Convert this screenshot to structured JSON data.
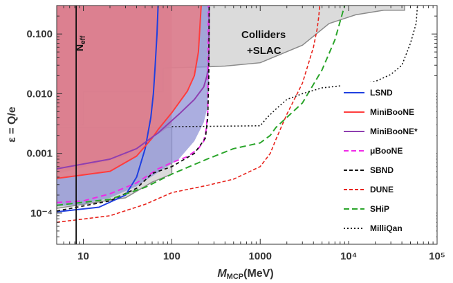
{
  "chart_data": {
    "type": "line",
    "x_scale": "log",
    "y_scale": "log",
    "xlim": [
      5,
      100000
    ],
    "ylim": [
      3e-05,
      0.3
    ],
    "x_ticks": [
      {
        "value": 10,
        "label": "10"
      },
      {
        "value": 100,
        "label": "100"
      },
      {
        "value": 1000,
        "label": "1000"
      },
      {
        "value": 10000,
        "label": "10⁴"
      },
      {
        "value": 100000,
        "label": "10⁵"
      }
    ],
    "y_ticks": [
      {
        "value": 0.0001,
        "label": "10⁻⁴"
      },
      {
        "value": 0.001,
        "label": "0.001"
      },
      {
        "value": 0.01,
        "label": "0.010"
      },
      {
        "value": 0.1,
        "label": "0.100"
      }
    ],
    "xlabel": {
      "symbol": "M",
      "subscript": "MCP",
      "unit": "(MeV)"
    },
    "ylabel": "ε = Q/e",
    "grid": false,
    "legend_position": "right",
    "annotations": [
      {
        "text": "Colliders",
        "x": 550,
        "y": 0.11
      },
      {
        "text": "+SLAC",
        "x": 640,
        "y": 0.057
      }
    ],
    "neff_label": {
      "base": "N",
      "subscript": "eff",
      "x": 8.3,
      "y": 0.15
    },
    "excluded_regions": [
      {
        "name": "Colliders+SLAC",
        "fill": "#cfcfcf",
        "stroke": "#8a8a8a",
        "points": [
          [
            5,
            0.003
          ],
          [
            10,
            0.003
          ],
          [
            10,
            0.0108
          ],
          [
            80,
            0.0108
          ],
          [
            80,
            0.027
          ],
          [
            230,
            0.028
          ],
          [
            400,
            0.029
          ],
          [
            1000,
            0.033
          ],
          [
            3000,
            0.065
          ],
          [
            6000,
            0.15
          ],
          [
            12000,
            0.21
          ],
          [
            25000,
            0.25
          ],
          [
            43000,
            0.25
          ],
          [
            43000,
            0.3
          ],
          [
            5,
            0.3
          ]
        ]
      },
      {
        "name": "SLAC",
        "fill": "#cfcfcf",
        "stroke": "#8a8a8a",
        "points": [
          [
            5,
            0.00012
          ],
          [
            30,
            0.00018
          ],
          [
            60,
            0.00033
          ],
          [
            100,
            0.00045
          ],
          [
            100,
            0.0027
          ],
          [
            5,
            0.0027
          ]
        ]
      },
      {
        "name": "Neff",
        "fill": "#c7687f",
        "stroke": "none",
        "points": [
          [
            5,
            0.00045
          ],
          [
            30,
            0.0009
          ],
          [
            60,
            0.0018
          ],
          [
            100,
            0.003
          ],
          [
            100,
            0.3
          ],
          [
            5,
            0.3
          ]
        ]
      },
      {
        "name": "MiniBooNE*",
        "fill": "#8f93d6",
        "stroke": "none",
        "points": [
          [
            5,
            0.00013
          ],
          [
            10,
            0.00014
          ],
          [
            20,
            0.00018
          ],
          [
            40,
            0.00028
          ],
          [
            70,
            0.00048
          ],
          [
            120,
            0.0008
          ],
          [
            180,
            0.0016
          ],
          [
            230,
            0.0033
          ],
          [
            250,
            0.0055
          ],
          [
            262,
            0.013
          ],
          [
            265,
            0.3
          ],
          [
            5,
            0.3
          ]
        ]
      },
      {
        "name": "MiniBooNE",
        "fill": "#f07b7e",
        "stroke": "none",
        "points": [
          [
            5,
            0.00038
          ],
          [
            20,
            0.0005
          ],
          [
            40,
            0.0009
          ],
          [
            60,
            0.0018
          ],
          [
            70,
            0.0025
          ],
          [
            100,
            0.0048
          ],
          [
            150,
            0.011
          ],
          [
            180,
            0.02
          ],
          [
            200,
            0.05
          ],
          [
            215,
            0.3
          ],
          [
            5,
            0.3
          ]
        ]
      }
    ],
    "series": [
      {
        "name": "LSND",
        "color": "#1f3fe0",
        "dash": "",
        "width": 2,
        "x": [
          5,
          15,
          30,
          40,
          50,
          58,
          62,
          65,
          68,
          70
        ],
        "y": [
          0.000105,
          0.000125,
          0.0002,
          0.0004,
          0.0012,
          0.004,
          0.01,
          0.03,
          0.1,
          0.3
        ]
      },
      {
        "name": "MiniBooNE",
        "color": "#ff3c3c",
        "dash": "",
        "width": 2,
        "x": [
          5,
          20,
          40,
          60,
          70,
          100,
          150,
          180,
          200,
          215
        ],
        "y": [
          0.00038,
          0.0005,
          0.0009,
          0.0018,
          0.0025,
          0.0048,
          0.011,
          0.02,
          0.05,
          0.3
        ]
      },
      {
        "name": "MiniBooNE*",
        "color": "#8e3fb0",
        "dash": "",
        "width": 2,
        "x": [
          5,
          20,
          40,
          70,
          120,
          180,
          230,
          250,
          262,
          265
        ],
        "y": [
          0.00055,
          0.0008,
          0.0012,
          0.0022,
          0.0045,
          0.008,
          0.013,
          0.02,
          0.035,
          0.3
        ]
      },
      {
        "name": "μBooNE",
        "color": "#f029e8",
        "dash": "8,5",
        "width": 2,
        "x": [
          5,
          10,
          20,
          40,
          70,
          100,
          150,
          200,
          230,
          245,
          255,
          260
        ],
        "y": [
          0.00015,
          0.00016,
          0.00021,
          0.00032,
          0.00055,
          0.0007,
          0.00088,
          0.0012,
          0.0016,
          0.0025,
          0.005,
          0.3
        ]
      },
      {
        "name": "SBND",
        "color": "#111111",
        "dash": "5,4",
        "width": 1.8,
        "x": [
          5,
          20,
          40,
          60,
          100,
          180,
          240,
          255,
          262,
          265
        ],
        "y": [
          0.000108,
          0.00016,
          0.00026,
          0.00046,
          0.0006,
          0.001,
          0.0018,
          0.004,
          0.02,
          0.3
        ]
      },
      {
        "name": "DUNE",
        "color": "#e8231c",
        "dash": "5,3",
        "width": 1.6,
        "x": [
          5,
          20,
          50,
          100,
          250,
          500,
          1000,
          1300,
          1500,
          2000,
          3000,
          4000,
          4400,
          4600,
          4700
        ],
        "y": [
          7e-05,
          9e-05,
          0.00014,
          0.00022,
          0.00029,
          0.00037,
          0.0006,
          0.001,
          0.0017,
          0.0045,
          0.015,
          0.06,
          0.12,
          0.2,
          0.3
        ]
      },
      {
        "name": "SHiP",
        "color": "#2aa52a",
        "dash": "9,5",
        "width": 2,
        "x": [
          5,
          20,
          50,
          100,
          250,
          500,
          1000,
          1300,
          1500,
          2000,
          3000,
          5000,
          7000,
          9000
        ],
        "y": [
          0.000135,
          0.00017,
          0.00027,
          0.00045,
          0.0008,
          0.0012,
          0.0015,
          0.002,
          0.0027,
          0.004,
          0.007,
          0.025,
          0.08,
          0.3
        ]
      },
      {
        "name": "MilliQan",
        "color": "#111111",
        "dash": "2,3",
        "width": 1.6,
        "x": [
          100,
          1000,
          1200,
          1500,
          2000,
          3000,
          5000,
          10000,
          20000,
          30000,
          40000,
          50000,
          58000,
          60000
        ],
        "y": [
          0.0028,
          0.0029,
          0.004,
          0.0055,
          0.008,
          0.01,
          0.0125,
          0.014,
          0.016,
          0.021,
          0.03,
          0.07,
          0.15,
          0.3
        ]
      },
      {
        "name": "Neff",
        "color": "#111111",
        "dash": "",
        "width": 1.8,
        "x": [
          8.3,
          8.3
        ],
        "y": [
          3e-05,
          0.3
        ]
      }
    ],
    "legend": [
      {
        "label": "LSND",
        "color": "#1f3fe0",
        "dash": ""
      },
      {
        "label": "MiniBooNE",
        "color": "#ff3c3c",
        "dash": ""
      },
      {
        "label": "MiniBooNE*",
        "color": "#8e3fb0",
        "dash": ""
      },
      {
        "label": "μBooNE",
        "color": "#f029e8",
        "dash": "7,4"
      },
      {
        "label": "SBND",
        "color": "#111111",
        "dash": "5,3"
      },
      {
        "label": "DUNE",
        "color": "#e8231c",
        "dash": "5,3"
      },
      {
        "label": "SHiP",
        "color": "#2aa52a",
        "dash": "8,4"
      },
      {
        "label": "MilliQan",
        "color": "#111111",
        "dash": "2,3"
      }
    ]
  }
}
